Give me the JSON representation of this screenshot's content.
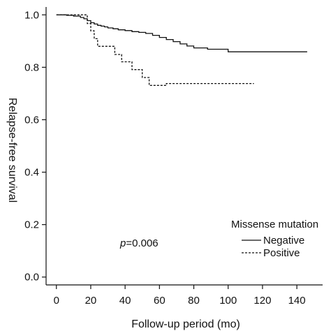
{
  "chart_data": {
    "type": "line",
    "title": "",
    "xlabel": "Follow-up period (mo)",
    "ylabel": "Relapse-free survival",
    "xlim": [
      -6,
      155
    ],
    "ylim": [
      -0.03,
      1.03
    ],
    "x_ticks": [
      0,
      20,
      40,
      60,
      80,
      100,
      120,
      140
    ],
    "y_ticks": [
      0.0,
      0.2,
      0.4,
      0.6,
      0.8,
      1.0
    ],
    "x_tick_labels": [
      "0",
      "20",
      "40",
      "60",
      "80",
      "100",
      "120",
      "140"
    ],
    "y_tick_labels": [
      "0.0",
      "0.2",
      "0.4",
      "0.6",
      "0.8",
      "1.0"
    ],
    "grid": false,
    "legend": {
      "title": "Missense mutation",
      "position": "bottom-right"
    },
    "annotation": {
      "p_symbol": "p",
      "p_value": "=0.006"
    },
    "series": [
      {
        "name": "Negative",
        "style": "solid",
        "color": "#111111",
        "x": [
          0,
          6,
          10,
          14,
          16,
          18,
          20,
          22,
          24,
          26,
          28,
          30,
          33,
          36,
          40,
          44,
          48,
          52,
          56,
          60,
          64,
          68,
          72,
          76,
          80,
          88,
          100,
          146
        ],
        "y": [
          1.0,
          0.998,
          0.995,
          0.99,
          0.985,
          0.978,
          0.97,
          0.965,
          0.96,
          0.957,
          0.954,
          0.95,
          0.947,
          0.943,
          0.94,
          0.936,
          0.933,
          0.929,
          0.922,
          0.914,
          0.906,
          0.898,
          0.889,
          0.881,
          0.874,
          0.869,
          0.859,
          0.859
        ]
      },
      {
        "name": "Positive",
        "style": "dashed",
        "color": "#111111",
        "x": [
          0,
          16,
          18,
          20,
          22,
          24,
          32,
          34,
          38,
          44,
          50,
          54,
          62,
          64,
          115
        ],
        "y": [
          1.0,
          1.0,
          0.967,
          0.939,
          0.909,
          0.88,
          0.88,
          0.849,
          0.821,
          0.791,
          0.761,
          0.731,
          0.731,
          0.738,
          0.738
        ]
      }
    ]
  }
}
